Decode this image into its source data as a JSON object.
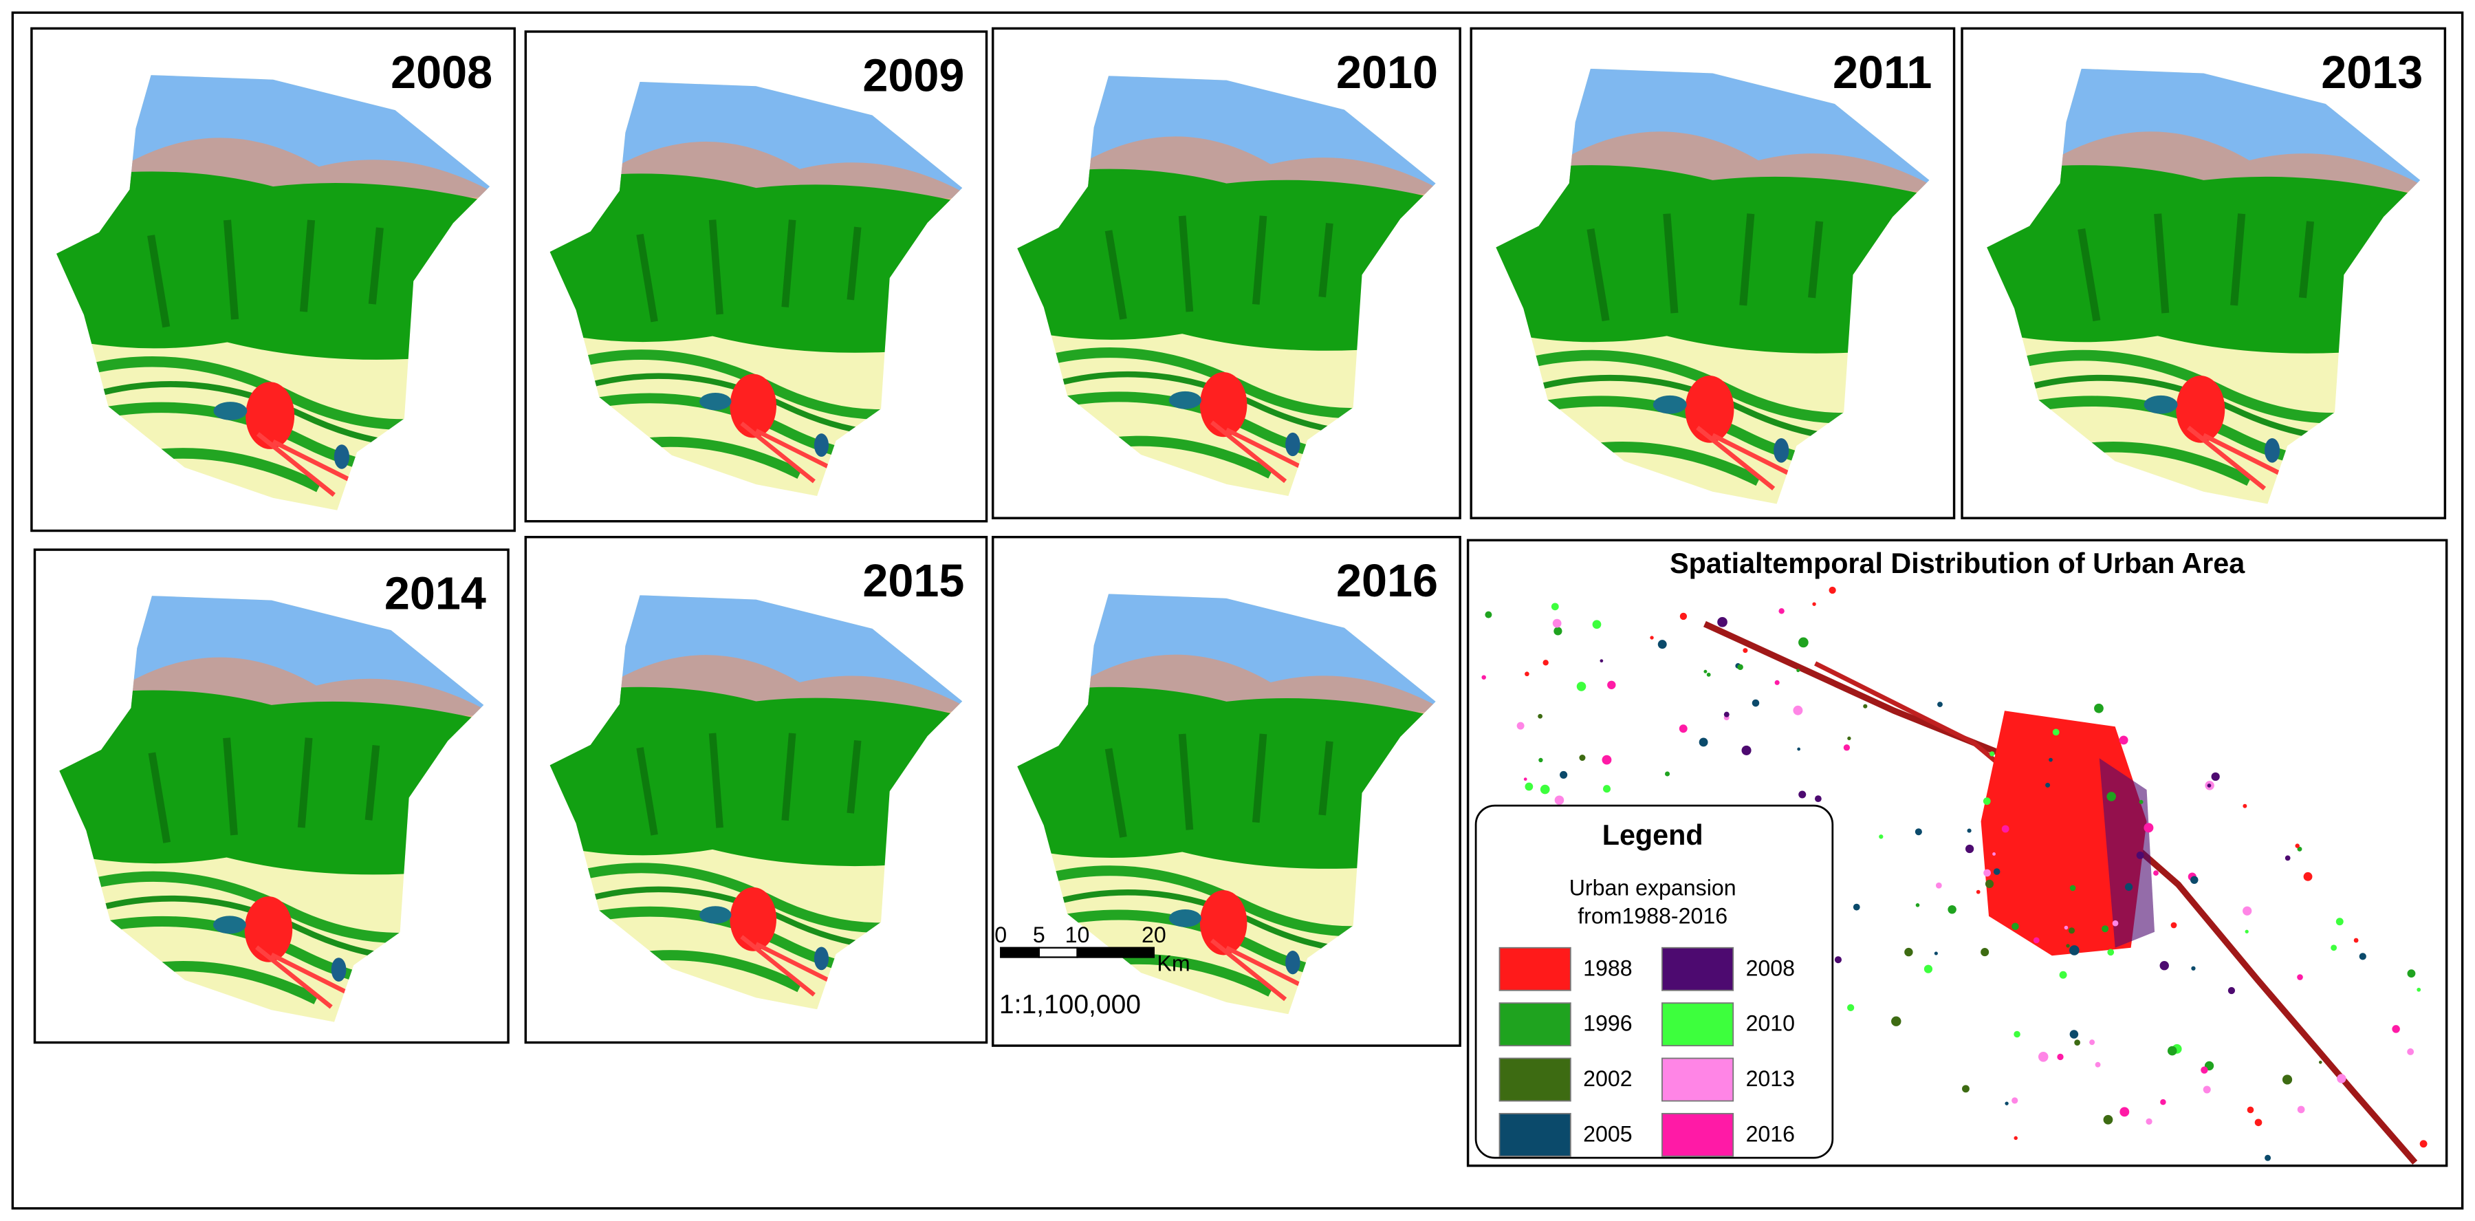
{
  "panels": [
    {
      "year": "2008"
    },
    {
      "year": "2009"
    },
    {
      "year": "2010"
    },
    {
      "year": "2011"
    },
    {
      "year": "2013"
    },
    {
      "year": "2014"
    },
    {
      "year": "2015"
    },
    {
      "year": "2016"
    }
  ],
  "scale_bar": {
    "ticks": [
      0,
      5,
      10,
      20
    ],
    "unit": "Km",
    "ratio": "1:1,100,000"
  },
  "urban_map": {
    "title": "Spatialtemporal Distribution of Urban Area",
    "legend": {
      "title": "Legend",
      "subtitle_lines": [
        "Urban expansion",
        "from1988-2016"
      ],
      "items": [
        {
          "label": "1988",
          "color": "#ff1a1a"
        },
        {
          "label": "1996",
          "color": "#1fa31f"
        },
        {
          "label": "2002",
          "color": "#3d6b12"
        },
        {
          "label": "2005",
          "color": "#0b4a6b"
        },
        {
          "label": "2008",
          "color": "#4d0a70"
        },
        {
          "label": "2010",
          "color": "#3dff3d"
        },
        {
          "label": "2013",
          "color": "#ff85e6"
        },
        {
          "label": "2016",
          "color": "#ff1aa6"
        }
      ]
    }
  }
}
